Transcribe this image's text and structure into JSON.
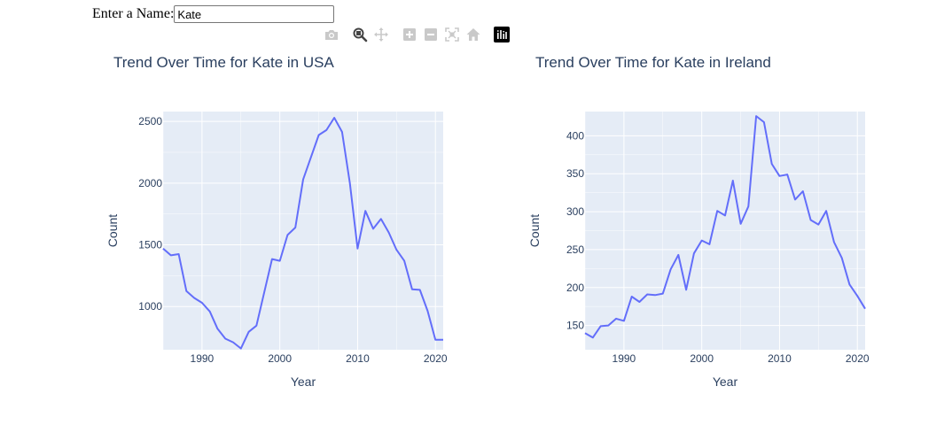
{
  "name_input": {
    "label": "Enter a Name:",
    "value": "Kate"
  },
  "toolbar": {
    "icons": [
      "camera-icon",
      "zoom-icon",
      "pan-icon",
      "zoom-in-icon",
      "zoom-out-icon",
      "autoscale-icon",
      "home-icon",
      "plotly-logo-icon"
    ]
  },
  "colors": {
    "line": "#636efa",
    "plot_bg": "#e5ecf6",
    "grid": "#ffffff",
    "text": "#2a3f5f",
    "axis_text": "#2a3f5f"
  },
  "chart_data": [
    {
      "type": "line",
      "title": "Trend Over Time for Kate in USA",
      "xlabel": "Year",
      "ylabel": "Count",
      "xlim": [
        1985,
        2021
      ],
      "ylim": [
        650,
        2580
      ],
      "xticks": [
        1990,
        2000,
        2010,
        2020
      ],
      "yticks": [
        1000,
        1500,
        2000,
        2500
      ],
      "grid": true,
      "legend": "none",
      "x": [
        1985,
        1986,
        1987,
        1988,
        1989,
        1990,
        1991,
        1992,
        1993,
        1994,
        1995,
        1996,
        1997,
        1998,
        1999,
        2000,
        2001,
        2002,
        2003,
        2004,
        2005,
        2006,
        2007,
        2008,
        2009,
        2010,
        2011,
        2012,
        2013,
        2014,
        2015,
        2016,
        2017,
        2018,
        2019,
        2020,
        2021
      ],
      "y": [
        1470,
        1415,
        1425,
        1125,
        1070,
        1030,
        960,
        820,
        740,
        710,
        660,
        795,
        845,
        1115,
        1385,
        1370,
        1580,
        1640,
        2030,
        2210,
        2390,
        2430,
        2530,
        2415,
        2000,
        1470,
        1775,
        1630,
        1710,
        1600,
        1460,
        1370,
        1140,
        1135,
        965,
        730,
        730
      ]
    },
    {
      "type": "line",
      "title": "Trend Over Time for Kate in Ireland",
      "xlabel": "Year",
      "ylabel": "Count",
      "xlim": [
        1985,
        2021
      ],
      "ylim": [
        118,
        432
      ],
      "xticks": [
        1990,
        2000,
        2010,
        2020
      ],
      "yticks": [
        150,
        200,
        250,
        300,
        350,
        400
      ],
      "grid": true,
      "legend": "none",
      "x": [
        1985,
        1986,
        1987,
        1988,
        1989,
        1990,
        1991,
        1992,
        1993,
        1994,
        1995,
        1996,
        1997,
        1998,
        1999,
        2000,
        2001,
        2002,
        2003,
        2004,
        2005,
        2006,
        2007,
        2008,
        2009,
        2010,
        2011,
        2012,
        2013,
        2014,
        2015,
        2016,
        2017,
        2018,
        2019,
        2020,
        2021
      ],
      "y": [
        140,
        134,
        149,
        150,
        159,
        156,
        188,
        181,
        191,
        190,
        192,
        224,
        243,
        197,
        245,
        262,
        257,
        301,
        295,
        341,
        284,
        307,
        426,
        418,
        363,
        347,
        349,
        316,
        327,
        289,
        283,
        301,
        260,
        239,
        204,
        189,
        172
      ]
    }
  ]
}
